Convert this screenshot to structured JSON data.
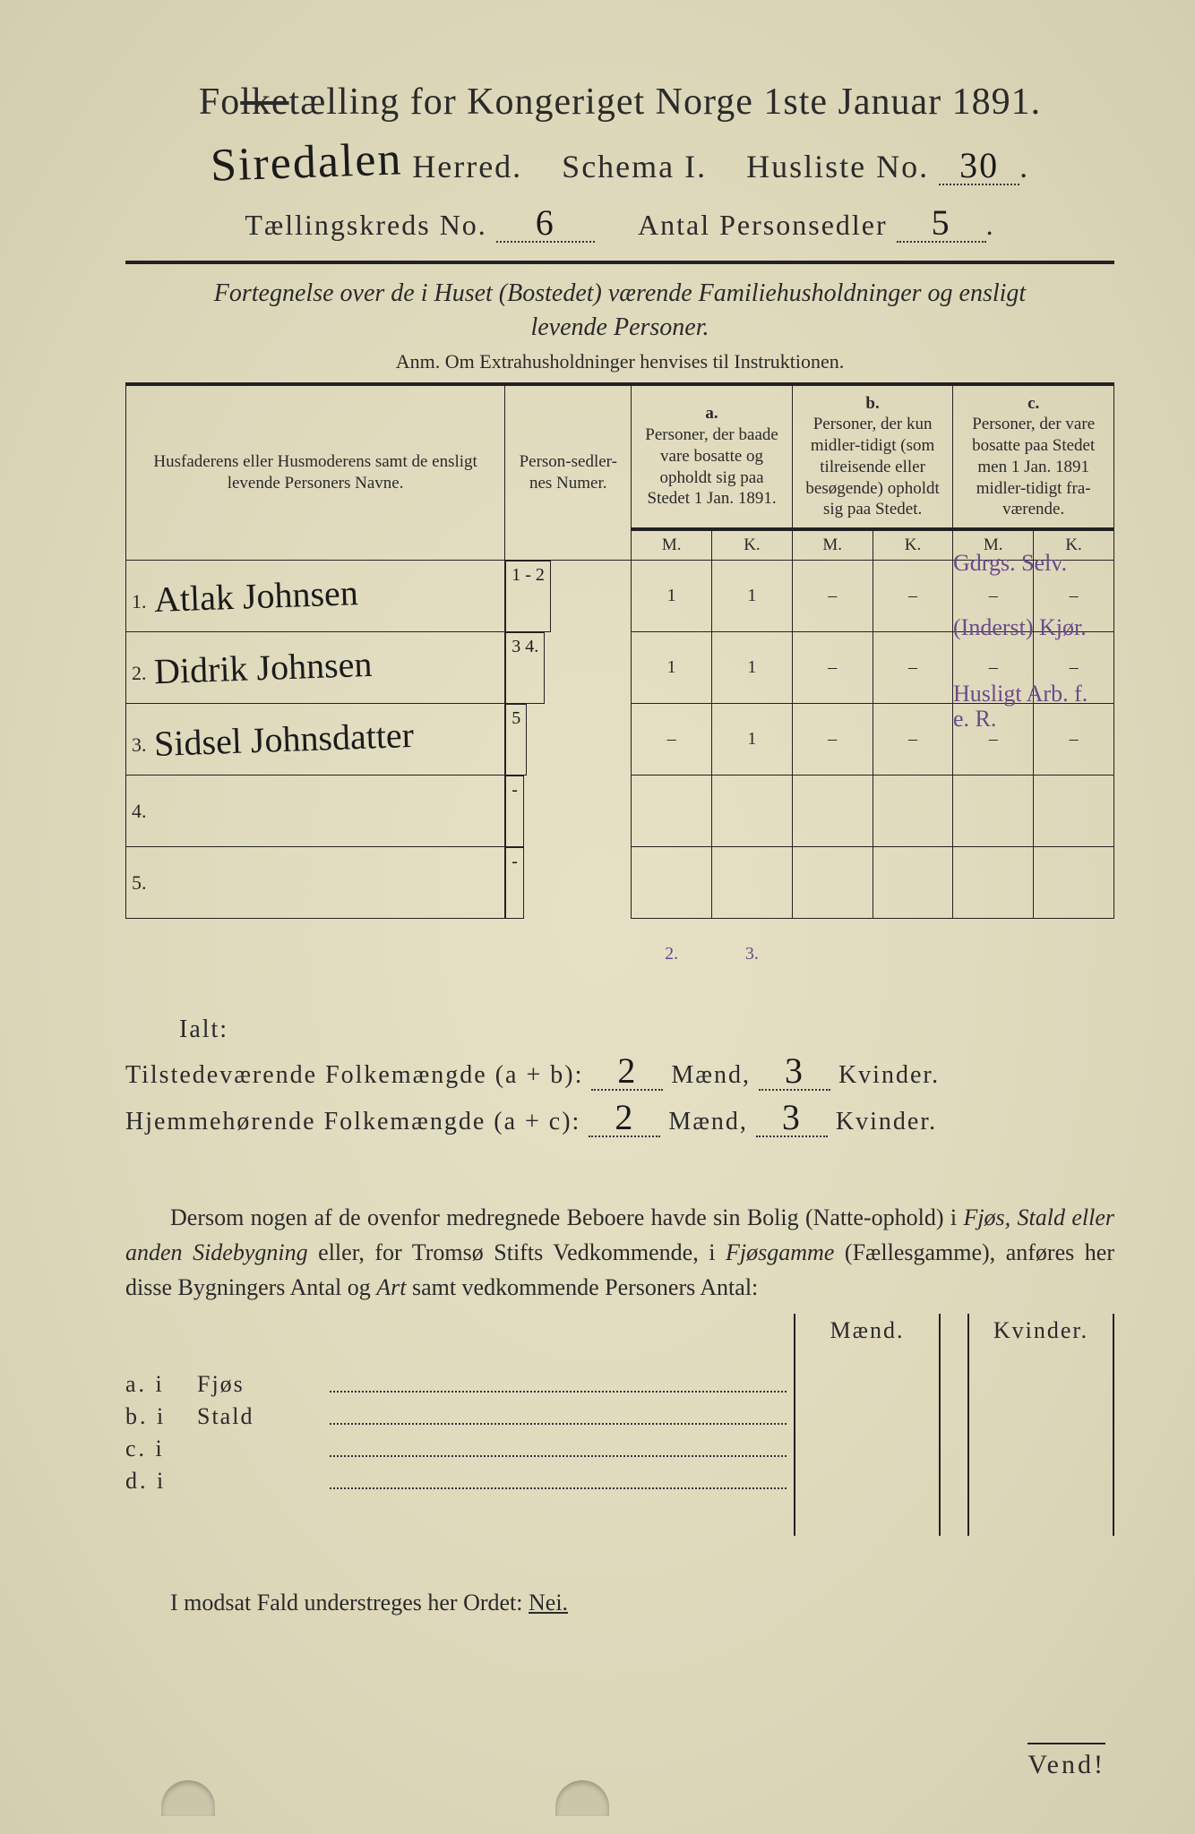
{
  "header": {
    "title_prefix": "Fo",
    "title_strike": "lke",
    "title_rest": "tælling for Kongeriget Norge 1ste Januar 1891.",
    "herred_handwritten": "Siredalen",
    "herred_label": "Herred.",
    "schema_label": "Schema I.",
    "husliste_label": "Husliste No.",
    "husliste_no": "30",
    "kreds_label": "Tællingskreds No.",
    "kreds_no": "6",
    "antal_label": "Antal Personsedler",
    "antal_no": "5"
  },
  "subtitle": {
    "line1": "Fortegnelse over de i Huset (Bostedet) værende Familiehusholdninger og ensligt",
    "line2": "levende Personer.",
    "anm": "Anm.  Om Extrahusholdninger henvises til Instruktionen."
  },
  "table": {
    "col_name": "Husfaderens eller Husmoderens samt de ensligt levende Personers Navne.",
    "col_num": "Person-sedler-nes Numer.",
    "col_a_letter": "a.",
    "col_a": "Personer, der baade vare bosatte og opholdt sig paa Stedet 1 Jan. 1891.",
    "col_b_letter": "b.",
    "col_b": "Personer, der kun midler-tidigt (som tilreisende eller besøgende) opholdt sig paa Stedet.",
    "col_c_letter": "c.",
    "col_c": "Personer, der vare bosatte paa Stedet men 1 Jan. 1891 midler-tidigt fra-værende.",
    "m": "M.",
    "k": "K.",
    "rows": [
      {
        "n": "1.",
        "name": "Atlak Johnsen",
        "num": "1 - 2",
        "a_m": "1",
        "a_k": "1",
        "b_m": "–",
        "b_k": "–",
        "c_m": "–",
        "c_k": "–",
        "note": "Gdrgs. Selv."
      },
      {
        "n": "2.",
        "name": "Didrik Johnsen",
        "num": "3 4.",
        "a_m": "1",
        "a_k": "1",
        "b_m": "–",
        "b_k": "–",
        "c_m": "–",
        "c_k": "–",
        "note": "(Inderst) Kjør."
      },
      {
        "n": "3.",
        "name": "Sidsel Johnsdatter",
        "num": "5",
        "a_m": "–",
        "a_k": "1",
        "b_m": "–",
        "b_k": "–",
        "c_m": "–",
        "c_k": "–",
        "note": "Husligt Arb. f. e. R."
      },
      {
        "n": "4.",
        "name": "",
        "num": "-",
        "a_m": "",
        "a_k": "",
        "b_m": "",
        "b_k": "",
        "c_m": "",
        "c_k": "",
        "note": ""
      },
      {
        "n": "5.",
        "name": "",
        "num": "-",
        "a_m": "",
        "a_k": "",
        "b_m": "",
        "b_k": "",
        "c_m": "",
        "c_k": "",
        "note": ""
      }
    ],
    "totals_a_m": "2.",
    "totals_a_k": "3."
  },
  "ialt": {
    "label": "Ialt:",
    "line1_a": "Tilstedeværende Folkemængde (a + b):",
    "line1_m": "2",
    "line1_mid": "Mænd,",
    "line1_k": "3",
    "line1_end": "Kvinder.",
    "line2_a": "Hjemmehørende Folkemængde (a + c):",
    "line2_m": "2",
    "line2_mid": "Mænd,",
    "line2_k": "3",
    "line2_end": "Kvinder."
  },
  "para": {
    "text1": "Dersom nogen af de ovenfor medregnede Beboere havde sin Bolig (Natte-ophold) i ",
    "it1": "Fjøs, Stald eller anden Sidebygning",
    "text2": " eller, for Tromsø Stifts Vedkommende, i ",
    "it2": "Fjøsgamme",
    "text3": " (Fællesgamme), anføres her disse Bygningers Antal og ",
    "it3": "Art",
    "text4": " samt vedkommende Personers Antal:"
  },
  "subtable": {
    "maend": "Mænd.",
    "kvinder": "Kvinder.",
    "rows": [
      {
        "lab": "a.  i",
        "mid": "Fjøs"
      },
      {
        "lab": "b.  i",
        "mid": "Stald"
      },
      {
        "lab": "c.  i",
        "mid": ""
      },
      {
        "lab": "d.  i",
        "mid": ""
      }
    ]
  },
  "nei": {
    "text": "I modsat Fald understreges her Ordet: ",
    "word": "Nei."
  },
  "vend": "Vend!",
  "colors": {
    "bg": "#e0dbc0",
    "ink": "#2a2a2a",
    "handwriting": "#1b1b1b",
    "purple_note": "#6a4a8a"
  }
}
